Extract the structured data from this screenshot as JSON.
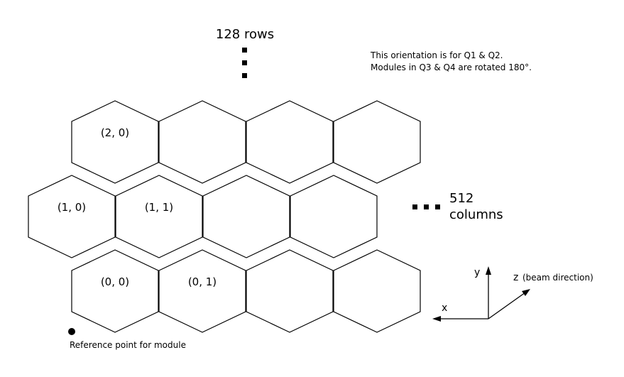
{
  "rows_label": "128 rows",
  "columns_count": "512",
  "columns_word": "columns",
  "orientation_note": {
    "line1": "This orientation is for Q1 & Q2.",
    "line2": "Modules in Q3 & Q4 are rotated 180°."
  },
  "cells": [
    {
      "row": 0,
      "col": 0,
      "label": "(0, 0)"
    },
    {
      "row": 0,
      "col": 1,
      "label": "(0, 1)"
    },
    {
      "row": 0,
      "col": 2,
      "label": ""
    },
    {
      "row": 0,
      "col": 3,
      "label": ""
    },
    {
      "row": 1,
      "col": 0,
      "label": "(1, 0)"
    },
    {
      "row": 1,
      "col": 1,
      "label": "(1, 1)"
    },
    {
      "row": 1,
      "col": 2,
      "label": ""
    },
    {
      "row": 1,
      "col": 3,
      "label": ""
    },
    {
      "row": 2,
      "col": 0,
      "label": "(2, 0)"
    },
    {
      "row": 2,
      "col": 1,
      "label": ""
    },
    {
      "row": 2,
      "col": 2,
      "label": ""
    },
    {
      "row": 2,
      "col": 3,
      "label": ""
    }
  ],
  "reference_point_label": "Reference point for module",
  "axes": {
    "x_label": "x",
    "y_label": "y",
    "z_label": "z",
    "z_sub": "(beam direction)"
  }
}
